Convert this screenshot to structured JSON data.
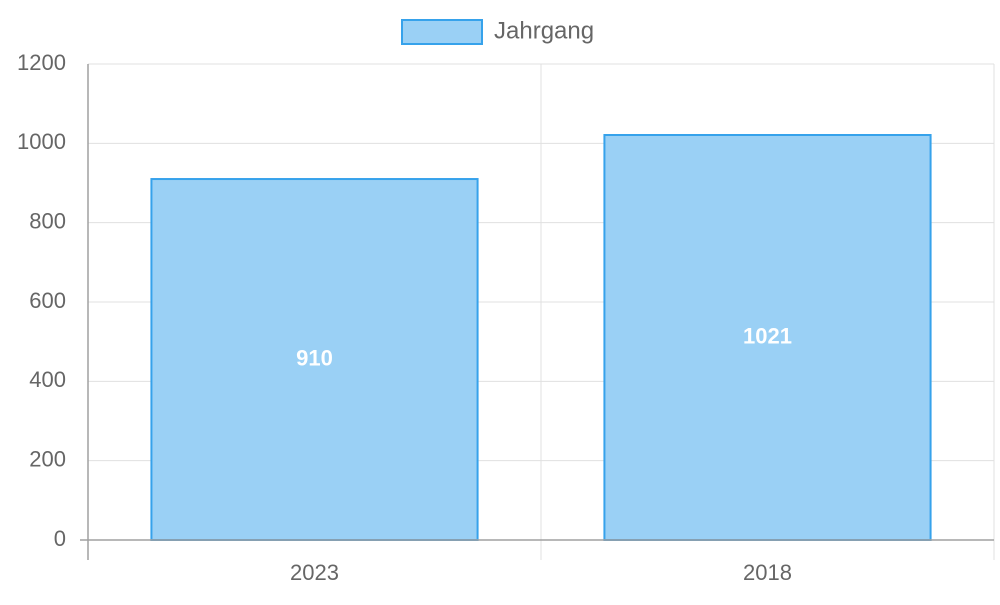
{
  "chart_data": {
    "type": "bar",
    "categories": [
      "2023",
      "2018"
    ],
    "series": [
      {
        "name": "Jahrgang",
        "values": [
          910,
          1021
        ]
      }
    ],
    "ylim": [
      0,
      1200
    ],
    "yticks": [
      0,
      200,
      400,
      600,
      800,
      1000,
      1200
    ],
    "grid": true,
    "legend_position": "top",
    "data_labels": true,
    "colors": {
      "bar_fill": "#9ad0f5",
      "bar_border": "#36a2eb",
      "grid": "#e0e0e0",
      "axis": "#a0a0a0",
      "tick_text": "#666666",
      "data_label": "#ffffff"
    }
  }
}
